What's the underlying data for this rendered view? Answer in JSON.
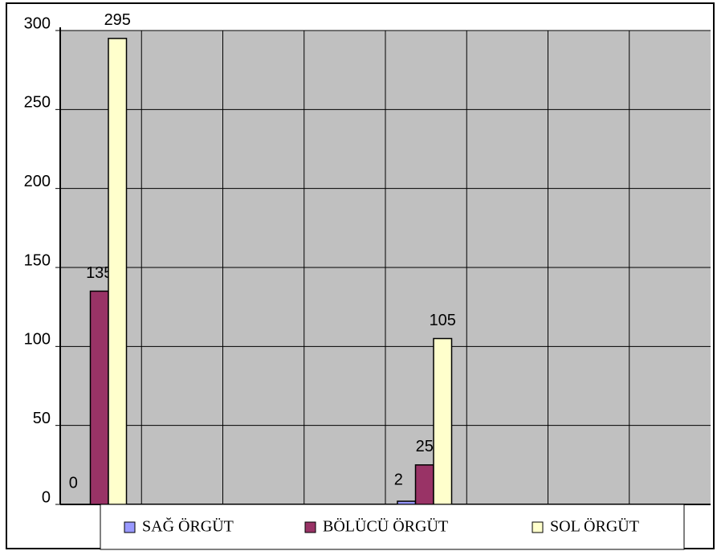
{
  "chart_data": {
    "type": "bar",
    "categories": [
      null,
      null,
      null,
      null,
      null,
      null,
      null,
      null
    ],
    "series": [
      {
        "name": "SAĞ ÖRGÜT",
        "color": "#9999ff",
        "values": [
          0,
          null,
          null,
          null,
          2,
          null,
          null,
          null
        ]
      },
      {
        "name": "BÖLÜCÜ ÖRGÜT",
        "color": "#993366",
        "values": [
          135,
          null,
          null,
          null,
          25,
          null,
          null,
          null
        ]
      },
      {
        "name": "SOL ÖRGÜT",
        "color": "#ffffcc",
        "values": [
          295,
          null,
          null,
          null,
          105,
          null,
          null,
          null
        ]
      }
    ],
    "ylim": [
      0,
      300
    ],
    "yticks": [
      0,
      50,
      100,
      150,
      200,
      250,
      300
    ],
    "grid": true,
    "legend": "bottom"
  }
}
